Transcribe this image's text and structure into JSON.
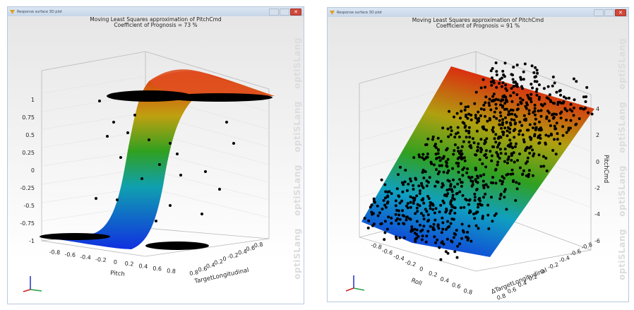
{
  "windows": [
    {
      "titlebar": {
        "title": "Response surface 3D plot",
        "close_glyph": "✕"
      },
      "plot": {
        "title_line1": "Moving Least Squares  approximation of PitchCmd",
        "title_line2": "Coefficient of Prognosis = 73 %"
      },
      "watermark": "optiSLang"
    },
    {
      "titlebar": {
        "title": "Response surface 3D plot",
        "close_glyph": "✕"
      },
      "plot": {
        "title_line1": "Moving Least Squares  approximation of PitchCmd",
        "title_line2": "Coefficient of Prognosis = 91 %"
      },
      "watermark": "optiSLang"
    }
  ],
  "colors": {
    "surface_low": "#1030e0",
    "surface_mid": "#20a020",
    "surface_high": "#e02010",
    "points": "#000000",
    "axis_x": "#d02020",
    "axis_y": "#20a040",
    "axis_z": "#2030c0"
  },
  "chart_data": [
    {
      "type": "surface3d",
      "title": "Moving Least Squares  approximation of PitchCmd",
      "subtitle": "Coefficient of Prognosis = 73 %",
      "xlabel": "Pitch",
      "ylabel": "TargetLongitudinal",
      "zlabel": "",
      "x_ticks": [
        "-0.8",
        "-0.6",
        "-0.4",
        "-0.2",
        "0",
        "0.2",
        "0.4",
        "0.6",
        "0.8"
      ],
      "y_ticks": [
        "0.8",
        "0.6",
        "0.4",
        "0.2",
        "0",
        "-0.2",
        "-0.4",
        "-0.6",
        "-0.8"
      ],
      "z_ticks": [
        "1",
        "0.75",
        "0.5",
        "0.25",
        "0",
        "-0.25",
        "-0.5",
        "-0.75",
        "-1"
      ],
      "zlim": [
        -1,
        1
      ],
      "surface": "sigmoid step from -1 to 1 along Pitch near 0.1, with points clustered at -1 and +1 plateaus",
      "grid": true
    },
    {
      "type": "surface3d",
      "title": "Moving Least Squares  approximation of PitchCmd",
      "subtitle": "Coefficient of Prognosis = 91 %",
      "xlabel": "Roll",
      "ylabel": "ΔTargetLongitudinal",
      "zlabel": "PitchCmd",
      "x_ticks": [
        "-0.8",
        "-0.6",
        "-0.4",
        "-0.2",
        "0",
        "0.2",
        "0.4",
        "0.6",
        "0.8"
      ],
      "y_ticks": [
        "0.8",
        "0.6",
        "0.4",
        "0.2",
        "0",
        "-0.2",
        "-0.4",
        "-0.6",
        "-0.8"
      ],
      "z_ticks": [
        "4",
        "2",
        "0",
        "-2",
        "-4",
        "-6"
      ],
      "zlim": [
        -6,
        5
      ],
      "surface": "approximately linear plane rising from about -5 to +4.5 along ΔTargetLongitudinal, with scattered points around it",
      "grid": true
    }
  ]
}
